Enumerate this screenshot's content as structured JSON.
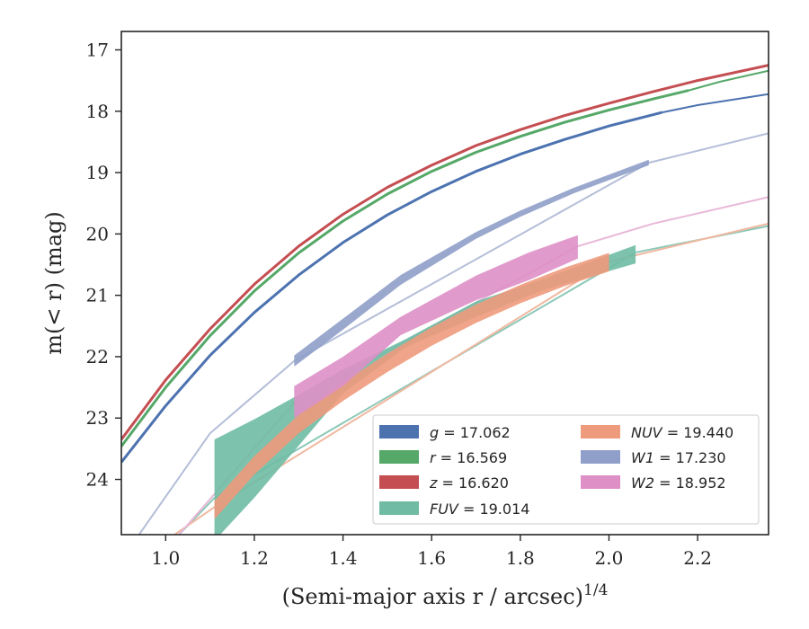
{
  "chart_data": {
    "type": "line",
    "xlabel": "(Semi-major axis r / arcsec)",
    "xlabel_exponent": "1/4",
    "ylabel": "m(< r) (mag)",
    "xlim": [
      0.9,
      2.36
    ],
    "ylim": [
      24.9,
      16.7
    ],
    "y_inverted": true,
    "x_ticks": [
      "1.0",
      "1.2",
      "1.4",
      "1.6",
      "1.8",
      "2.0",
      "2.2"
    ],
    "y_ticks": [
      "17",
      "18",
      "19",
      "20",
      "21",
      "22",
      "23",
      "24"
    ],
    "grid": false,
    "legend_position": "lower-right",
    "legend_entries": [
      "g = 17.062",
      "r = 16.569",
      "z = 16.620",
      "FUV = 19.014",
      "NUV = 19.440",
      "W1 = 17.230",
      "W2 = 18.952"
    ],
    "series": [
      {
        "name": "g = 17.062",
        "color": "#4c72b0",
        "band": false,
        "x": [
          0.9,
          1.0,
          1.1,
          1.2,
          1.3,
          1.4,
          1.5,
          1.6,
          1.7,
          1.8,
          1.9,
          2.0,
          2.12
        ],
        "y": [
          23.72,
          22.8,
          21.98,
          21.28,
          20.67,
          20.14,
          19.69,
          19.31,
          18.98,
          18.7,
          18.46,
          18.24,
          18.02
        ],
        "model_x": [
          2.12,
          2.2,
          2.36
        ],
        "model_y": [
          18.02,
          17.9,
          17.72
        ]
      },
      {
        "name": "r = 16.569",
        "color": "#55a868",
        "band": false,
        "x": [
          0.9,
          1.0,
          1.1,
          1.2,
          1.3,
          1.4,
          1.5,
          1.6,
          1.7,
          1.8,
          1.9,
          2.0,
          2.1,
          2.18
        ],
        "y": [
          23.46,
          22.5,
          21.66,
          20.93,
          20.31,
          19.79,
          19.35,
          18.98,
          18.67,
          18.41,
          18.18,
          17.98,
          17.8,
          17.66
        ],
        "model_x": [
          2.18,
          2.25,
          2.36
        ],
        "model_y": [
          17.66,
          17.52,
          17.34
        ]
      },
      {
        "name": "z = 16.620",
        "color": "#c44e52",
        "band": false,
        "x": [
          0.9,
          1.0,
          1.1,
          1.2,
          1.3,
          1.4,
          1.5,
          1.6,
          1.7,
          1.8,
          1.9,
          2.0,
          2.1,
          2.2,
          2.36
        ],
        "y": [
          23.35,
          22.38,
          21.55,
          20.82,
          20.2,
          19.68,
          19.24,
          18.88,
          18.56,
          18.3,
          18.07,
          17.87,
          17.68,
          17.5,
          17.25
        ],
        "model_x": [],
        "model_y": []
      },
      {
        "name": "FUV = 19.014",
        "color": "#8cc8b8",
        "fill": "#6fbba4",
        "band": true,
        "x": [
          1.11,
          1.2,
          1.3,
          1.4,
          1.54,
          1.7,
          1.85,
          2.06
        ],
        "y_low": [
          23.35,
          23.02,
          22.62,
          22.21,
          21.72,
          21.1,
          20.74,
          20.18
        ],
        "y_high": [
          25.0,
          24.3,
          23.45,
          22.6,
          21.85,
          21.35,
          20.92,
          20.48
        ],
        "model_x": [
          1.03,
          1.11,
          2.06,
          2.36
        ],
        "model_y": [
          24.9,
          24.3,
          20.3,
          19.87
        ]
      },
      {
        "name": "NUV = 19.440",
        "color": "#f0b8a0",
        "fill": "#ee9a7c",
        "band": true,
        "x": [
          1.11,
          1.2,
          1.3,
          1.4,
          1.5,
          1.6,
          1.7,
          1.8,
          1.9,
          2.0
        ],
        "y_low": [
          24.35,
          23.62,
          22.95,
          22.42,
          21.95,
          21.52,
          21.15,
          20.83,
          20.55,
          20.31
        ],
        "y_high": [
          24.65,
          23.92,
          23.25,
          22.72,
          22.25,
          21.82,
          21.45,
          21.13,
          20.85,
          20.61
        ],
        "model_x": [
          1.02,
          1.11,
          2.0,
          2.36
        ],
        "model_y": [
          24.9,
          24.45,
          20.45,
          19.83
        ]
      },
      {
        "name": "W1 = 17.230",
        "color": "#b4bed8",
        "fill": "#8f9fc9",
        "band": true,
        "x": [
          1.29,
          1.4,
          1.53,
          1.7,
          1.8,
          1.92,
          2.09
        ],
        "y_low": [
          21.98,
          21.38,
          20.67,
          19.97,
          19.62,
          19.25,
          18.79
        ],
        "y_high": [
          22.16,
          21.56,
          20.83,
          20.08,
          19.72,
          19.34,
          18.88
        ],
        "model_x": [
          0.94,
          1.1,
          1.29,
          2.09,
          2.36
        ],
        "model_y": [
          24.9,
          23.25,
          22.07,
          18.84,
          18.36
        ]
      },
      {
        "name": "W2 = 18.952",
        "color": "#e8b8d8",
        "fill": "#de8fc6",
        "band": true,
        "x": [
          1.29,
          1.4,
          1.53,
          1.7,
          1.82,
          1.93
        ],
        "y_low": [
          22.48,
          22.0,
          21.35,
          20.68,
          20.3,
          20.02
        ],
        "y_high": [
          23.0,
          22.48,
          21.65,
          21.08,
          20.75,
          20.4
        ],
        "model_x": [
          1.03,
          1.29,
          1.93,
          2.1,
          2.36
        ],
        "model_y": [
          24.9,
          22.75,
          20.2,
          19.83,
          19.4
        ]
      }
    ]
  }
}
